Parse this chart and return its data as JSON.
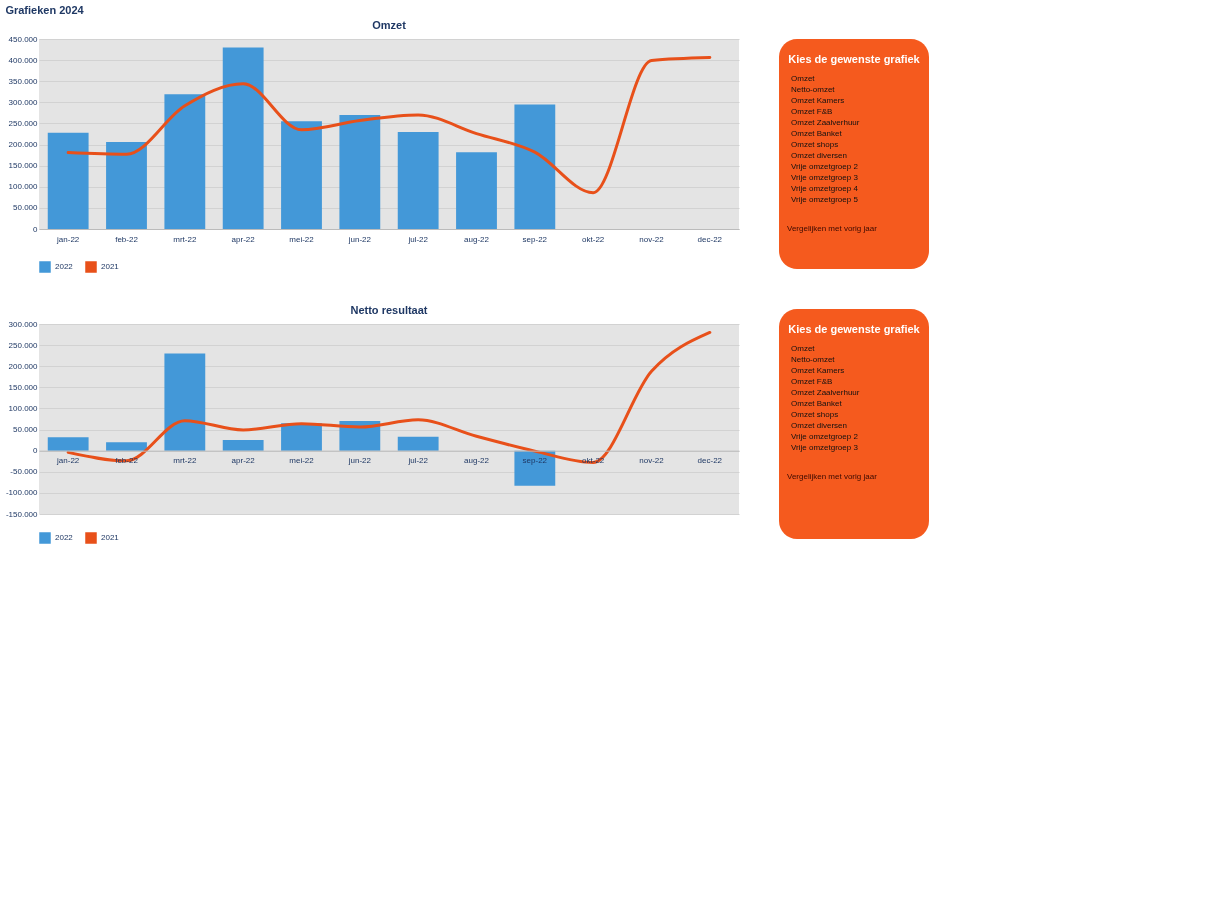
{
  "chart_data": [
    {
      "type": "bar",
      "title": "Omzet",
      "annotations": [
        "Grafieken 2024"
      ],
      "categories": [
        "jan-22",
        "feb-22",
        "mrt-22",
        "apr-22",
        "mei-22",
        "jun-22",
        "jul-22",
        "aug-22",
        "sep-22",
        "okt-22",
        "nov-22",
        "dec-22"
      ],
      "series": [
        {
          "name": "2022",
          "color": "#4398d8",
          "values": [
            228000,
            206000,
            319000,
            430000,
            255000,
            270000,
            230000,
            182000,
            295000,
            null,
            null,
            null
          ]
        },
        {
          "name": "2021",
          "type": "line",
          "color": "#e8501a",
          "values": [
            181000,
            177000,
            292000,
            344000,
            235000,
            257000,
            270000,
            226000,
            182000,
            86000,
            399000,
            406000
          ]
        }
      ],
      "ylim": [
        0,
        450000
      ],
      "yticks": [
        {
          "value": 0,
          "label": "0"
        },
        {
          "value": 50000,
          "label": "50.000"
        },
        {
          "value": 100000,
          "label": "100.000"
        },
        {
          "value": 150000,
          "label": "150.000"
        },
        {
          "value": 200000,
          "label": "200.000"
        },
        {
          "value": 250000,
          "label": "250.000"
        },
        {
          "value": 300000,
          "label": "300.000"
        },
        {
          "value": 350000,
          "label": "350.000"
        },
        {
          "value": 400000,
          "label": "400.000"
        },
        {
          "value": 450000,
          "label": "450.000"
        }
      ],
      "grid": "y",
      "legend": "bottom"
    },
    {
      "type": "bar",
      "title": "Netto resultaat",
      "categories": [
        "jan-22",
        "feb-22",
        "mrt-22",
        "apr-22",
        "mei-22",
        "jun-22",
        "jul-22",
        "aug-22",
        "sep-22",
        "okt-22",
        "nov-22",
        "dec-22"
      ],
      "series": [
        {
          "name": "2022",
          "color": "#4398d8",
          "values": [
            32000,
            20000,
            230000,
            25000,
            65000,
            70000,
            33000,
            0,
            -83000,
            null,
            null,
            null
          ]
        },
        {
          "name": "2021",
          "type": "line",
          "color": "#e8501a",
          "values": [
            -4000,
            -24000,
            71000,
            49000,
            64000,
            56000,
            73000,
            34000,
            -1000,
            -28000,
            188000,
            280000
          ]
        }
      ],
      "ylim": [
        -150000,
        300000
      ],
      "yticks": [
        {
          "value": -150000,
          "label": "-150.000"
        },
        {
          "value": -100000,
          "label": "-100.000"
        },
        {
          "value": -50000,
          "label": "-50.000"
        },
        {
          "value": 0,
          "label": "0"
        },
        {
          "value": 50000,
          "label": "50.000"
        },
        {
          "value": 100000,
          "label": "100.000"
        },
        {
          "value": 150000,
          "label": "150.000"
        },
        {
          "value": 200000,
          "label": "200.000"
        },
        {
          "value": 250000,
          "label": "250.000"
        },
        {
          "value": 300000,
          "label": "300.000"
        }
      ],
      "grid": "y",
      "legend": "bottom"
    },
    {
      "type": "other",
      "title": "Kies de gewenste grafiek",
      "annotations": [
        "Omzet",
        "Netto-omzet",
        "Omzet Kamers",
        "Omzet F&B",
        "Omzet Zaalverhuur",
        "Omzet Banket",
        "Omzet shops",
        "Omzet diversen",
        "Vrije omzetgroep 2",
        "Vrije omzetgroep 3",
        "Vrije omzetgroep 4",
        "Vrije omzetgroep 5",
        "Vergelijken met vorig jaar"
      ]
    },
    {
      "type": "other",
      "title": "Kies de gewenste grafiek",
      "annotations": [
        "Omzet",
        "Netto-omzet",
        "Omzet Kamers",
        "Omzet F&B",
        "Omzet Zaalverhuur",
        "Omzet Banket",
        "Omzet shops",
        "Omzet diversen",
        "Vrije omzetgroep 2",
        "Vrije omzetgroep 3",
        "Vergelijken met vorig jaar"
      ]
    }
  ]
}
